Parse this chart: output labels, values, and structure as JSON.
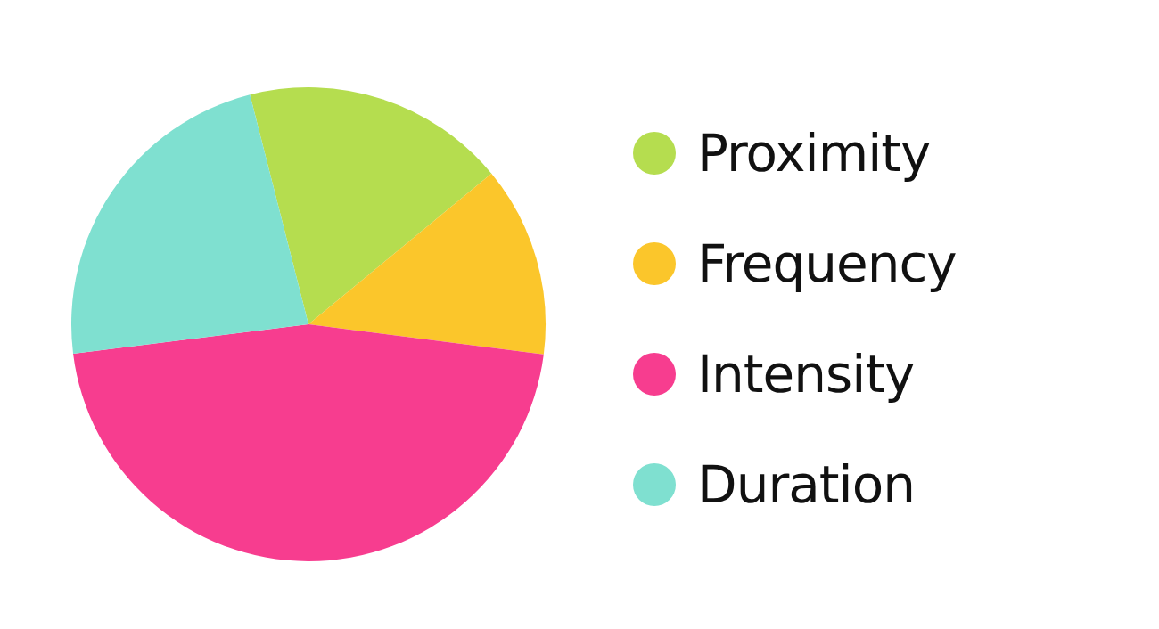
{
  "chart_data": {
    "type": "pie",
    "categories": [
      "Proximity",
      "Frequency",
      "Intensity",
      "Duration"
    ],
    "values": [
      18,
      13,
      46,
      23
    ],
    "colors": [
      "#b5dd4f",
      "#fbc62b",
      "#f73d8f",
      "#7fe0d0"
    ],
    "legend": "right"
  }
}
